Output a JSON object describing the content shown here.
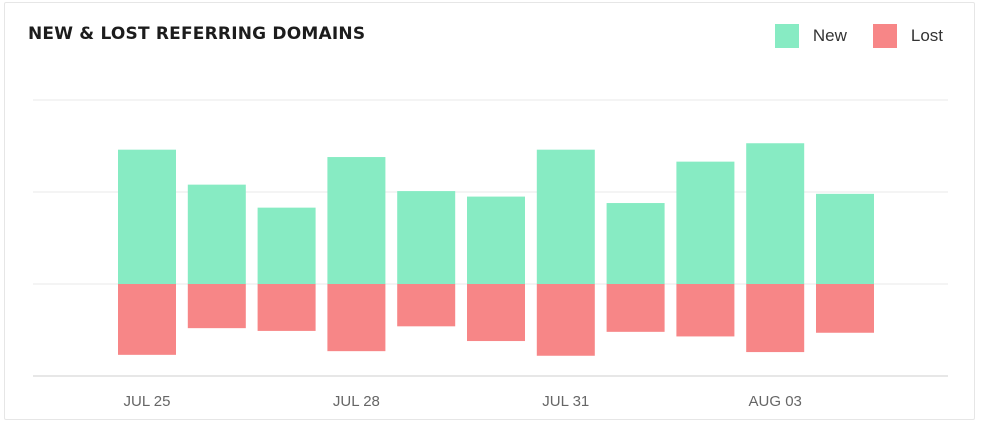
{
  "chart_data": {
    "type": "bar",
    "title": "NEW & LOST REFERRING DOMAINS",
    "x_tick_labels": [
      {
        "label": "JUL 25",
        "index": 0
      },
      {
        "label": "JUL 28",
        "index": 3
      },
      {
        "label": "JUL 31",
        "index": 6
      },
      {
        "label": "AUG 03",
        "index": 9
      }
    ],
    "series": [
      {
        "name": "New",
        "color": "#87ebc3",
        "values": [
          14.6,
          10.8,
          8.3,
          13.8,
          10.1,
          9.5,
          14.6,
          8.8,
          13.3,
          15.3,
          9.8
        ]
      },
      {
        "name": "Lost",
        "color": "#f78687",
        "values": [
          -7.7,
          -4.8,
          -5.1,
          -7.3,
          -4.6,
          -6.2,
          -7.8,
          -5.2,
          -5.7,
          -7.4,
          -5.3
        ]
      }
    ],
    "ylim": [
      -10,
      20
    ],
    "grid": true,
    "legend_position": "top-right"
  }
}
